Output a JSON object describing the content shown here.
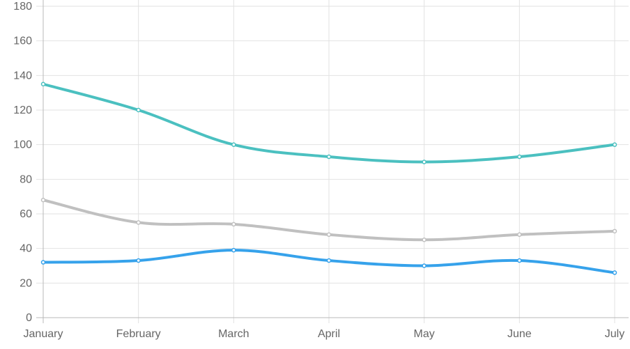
{
  "chart_data": {
    "type": "line",
    "title": "",
    "xlabel": "",
    "ylabel": "",
    "categories": [
      "January",
      "February",
      "March",
      "April",
      "May",
      "June",
      "July"
    ],
    "y_ticks": [
      "0",
      "20",
      "40",
      "60",
      "80",
      "100",
      "120",
      "140",
      "160",
      "180"
    ],
    "ylim": [
      0,
      180
    ],
    "grid": true,
    "legend": "none",
    "series": [
      {
        "color": "#4bc0c0",
        "values": [
          135,
          120,
          100,
          93,
          90,
          93,
          100
        ]
      },
      {
        "color": "#c0c0c0",
        "values": [
          68,
          55,
          54,
          48,
          45,
          48,
          50
        ]
      },
      {
        "color": "#36a2eb",
        "values": [
          32,
          33,
          39,
          33,
          30,
          33,
          26
        ]
      }
    ]
  }
}
